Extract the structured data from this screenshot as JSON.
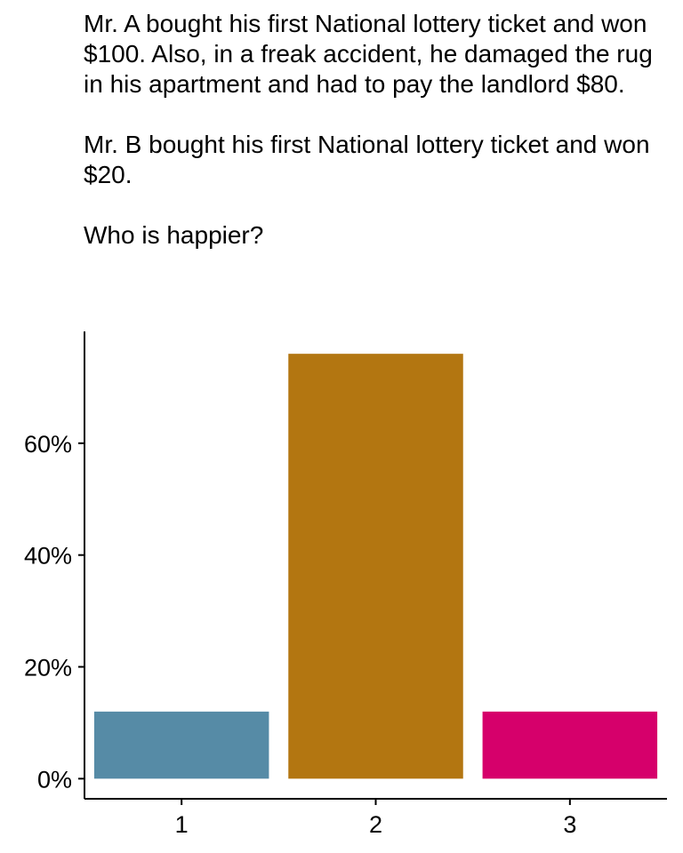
{
  "title_lines": [
    "Mr. A bought his first National lottery ticket and won $100. Also, in a freak accident, he damaged the rug in his apartment and had to pay the landlord $80.",
    "Mr. B bought his first National lottery ticket and won $20.",
    "Who is happier?"
  ],
  "chart_data": {
    "type": "bar",
    "title": "Mr. A bought his first National lottery ticket and won $100. Also, in a freak accident, he damaged the rug in his apartment and had to pay the landlord $80. Mr. B bought his first National lottery ticket and won $20. Who is happier?",
    "xlabel": "",
    "ylabel": "",
    "categories": [
      "1",
      "2",
      "3"
    ],
    "values": [
      12,
      76,
      12
    ],
    "colors": [
      "#568ba6",
      "#b37611",
      "#d6006b"
    ],
    "ylim": [
      -3.6,
      80
    ],
    "yticks": [
      0,
      20,
      40,
      60
    ],
    "ytick_labels": [
      "0%",
      "20%",
      "40%",
      "60%"
    ],
    "grid": false,
    "legend": "none"
  }
}
